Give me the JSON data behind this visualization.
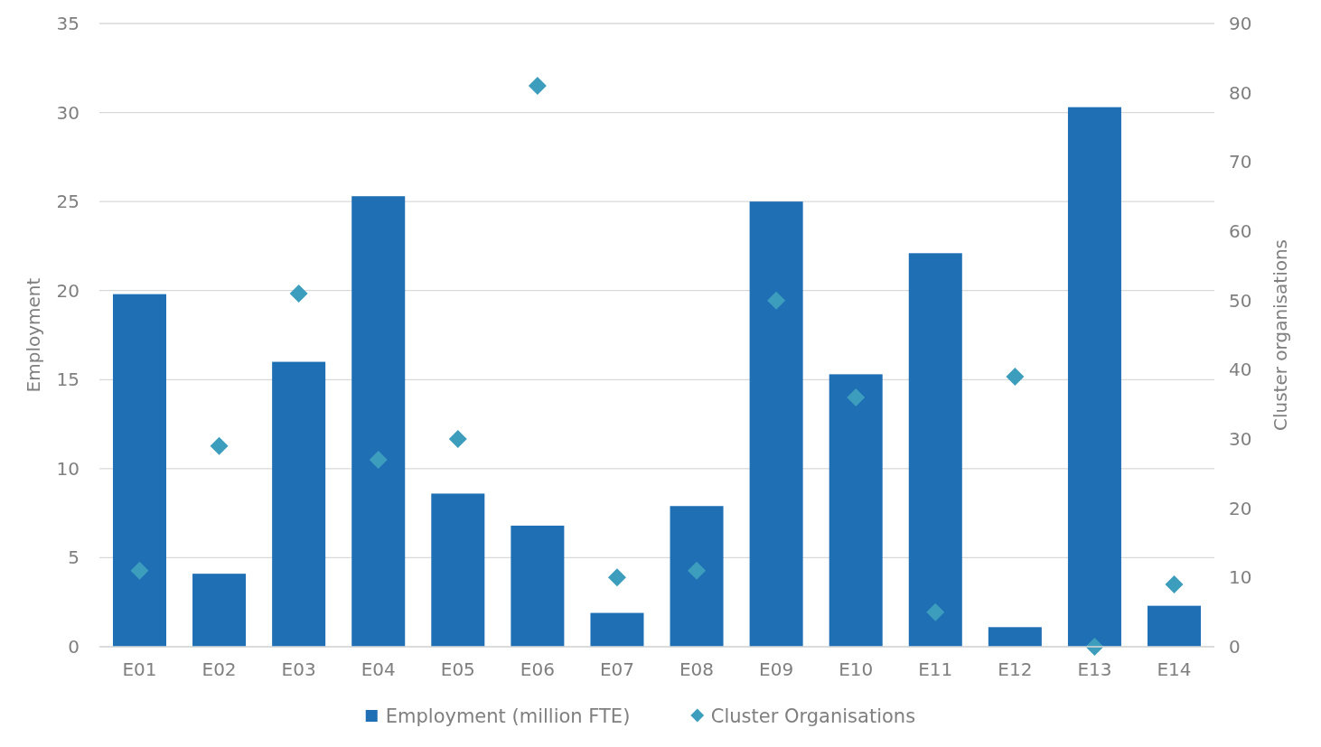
{
  "chart_data": {
    "type": "bar",
    "ylabel": "Employment",
    "y2label": "Cluster organisations",
    "categories": [
      "E01",
      "E02",
      "E03",
      "E04",
      "E05",
      "E06",
      "E07",
      "E08",
      "E09",
      "E10",
      "E11",
      "E12",
      "E13",
      "E14"
    ],
    "series": [
      {
        "name": "Employment (million FTE)",
        "color": "#1f6fb5",
        "values": [
          19.8,
          4.1,
          16.0,
          25.3,
          8.6,
          6.8,
          1.9,
          7.9,
          25.0,
          15.3,
          22.1,
          1.1,
          30.3,
          2.3
        ]
      },
      {
        "name": "Cluster Organisations",
        "type": "scatter",
        "axis": "y2",
        "color": "#3d9dbd",
        "values": [
          11,
          29,
          51,
          27,
          30,
          81,
          10,
          11,
          50,
          36,
          5,
          39,
          0,
          9
        ]
      }
    ],
    "ylim": [
      0,
      35
    ],
    "yticks": [
      0,
      5,
      10,
      15,
      20,
      25,
      30,
      35
    ],
    "y2lim": [
      0,
      90
    ],
    "y2ticks": [
      0,
      10,
      20,
      30,
      40,
      50,
      60,
      70,
      80,
      90
    ],
    "grid": "y",
    "legend": "bottom",
    "marker": "diamond"
  }
}
